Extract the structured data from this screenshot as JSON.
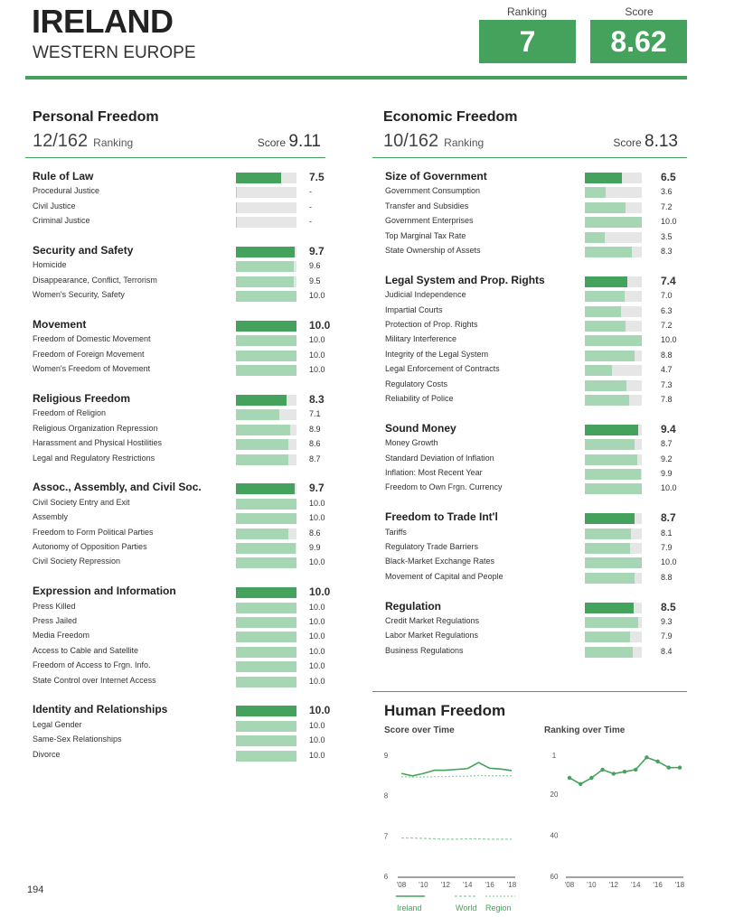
{
  "header": {
    "country": "IRELAND",
    "region": "WESTERN EUROPE",
    "ranking_label": "Ranking",
    "ranking_value": "7",
    "score_label": "Score",
    "score_value": "8.62"
  },
  "personal": {
    "title": "Personal Freedom",
    "rank": "12/162",
    "rank_label": "Ranking",
    "score_label": "Score",
    "score_value": "9.11",
    "categories": [
      {
        "name": "Rule of Law",
        "value": "7.5",
        "indicators": [
          {
            "name": "Procedural Justice",
            "value": "-"
          },
          {
            "name": "Civil Justice",
            "value": "-"
          },
          {
            "name": "Criminal Justice",
            "value": "-"
          }
        ]
      },
      {
        "name": "Security and Safety",
        "value": "9.7",
        "indicators": [
          {
            "name": "Homicide",
            "value": "9.6"
          },
          {
            "name": "Disappearance, Conflict, Terrorism",
            "value": "9.5"
          },
          {
            "name": "Women's Security, Safety",
            "value": "10.0"
          }
        ]
      },
      {
        "name": "Movement",
        "value": "10.0",
        "indicators": [
          {
            "name": "Freedom of Domestic Movement",
            "value": "10.0"
          },
          {
            "name": "Freedom of Foreign Movement",
            "value": "10.0"
          },
          {
            "name": "Women's Freedom of Movement",
            "value": "10.0"
          }
        ]
      },
      {
        "name": "Religious Freedom",
        "value": "8.3",
        "indicators": [
          {
            "name": "Freedom of Religion",
            "value": "7.1"
          },
          {
            "name": "Religious Organization Repression",
            "value": "8.9"
          },
          {
            "name": "Harassment and Physical Hostilities",
            "value": "8.6"
          },
          {
            "name": "Legal and Regulatory Restrictions",
            "value": "8.7"
          }
        ]
      },
      {
        "name": "Assoc., Assembly, and Civil Soc.",
        "value": "9.7",
        "indicators": [
          {
            "name": "Civil Society Entry and Exit",
            "value": "10.0"
          },
          {
            "name": "Assembly",
            "value": "10.0"
          },
          {
            "name": "Freedom to Form Political Parties",
            "value": "8.6"
          },
          {
            "name": "Autonomy of Opposition Parties",
            "value": "9.9"
          },
          {
            "name": "Civil Society Repression",
            "value": "10.0"
          }
        ]
      },
      {
        "name": "Expression and Information",
        "value": "10.0",
        "indicators": [
          {
            "name": "Press Killed",
            "value": "10.0"
          },
          {
            "name": "Press Jailed",
            "value": "10.0"
          },
          {
            "name": "Media Freedom",
            "value": "10.0"
          },
          {
            "name": "Access to Cable and Satellite",
            "value": "10.0"
          },
          {
            "name": "Freedom of Access to Frgn. Info.",
            "value": "10.0"
          },
          {
            "name": "State Control over Internet Access",
            "value": "10.0"
          }
        ]
      },
      {
        "name": "Identity and Relationships",
        "value": "10.0",
        "indicators": [
          {
            "name": "Legal Gender",
            "value": "10.0"
          },
          {
            "name": "Same-Sex Relationships",
            "value": "10.0"
          },
          {
            "name": "Divorce",
            "value": "10.0"
          }
        ]
      }
    ]
  },
  "economic": {
    "title": "Economic Freedom",
    "rank": "10/162",
    "rank_label": "Ranking",
    "score_label": "Score",
    "score_value": "8.13",
    "categories": [
      {
        "name": "Size of Government",
        "value": "6.5",
        "indicators": [
          {
            "name": "Government Consumption",
            "value": "3.6"
          },
          {
            "name": "Transfer and Subsidies",
            "value": "7.2"
          },
          {
            "name": "Government Enterprises",
            "value": "10.0"
          },
          {
            "name": "Top Marginal Tax Rate",
            "value": "3.5"
          },
          {
            "name": "State Ownership of Assets",
            "value": "8.3"
          }
        ]
      },
      {
        "name": "Legal System and Prop. Rights",
        "value": "7.4",
        "indicators": [
          {
            "name": "Judicial Independence",
            "value": "7.0"
          },
          {
            "name": "Impartial Courts",
            "value": "6.3"
          },
          {
            "name": "Protection of Prop. Rights",
            "value": "7.2"
          },
          {
            "name": "Military Interference",
            "value": "10.0"
          },
          {
            "name": "Integrity of the Legal System",
            "value": "8.8"
          },
          {
            "name": "Legal Enforcement of Contracts",
            "value": "4.7"
          },
          {
            "name": "Regulatory Costs",
            "value": "7.3"
          },
          {
            "name": "Reliability of Police",
            "value": "7.8"
          }
        ]
      },
      {
        "name": "Sound Money",
        "value": "9.4",
        "indicators": [
          {
            "name": "Money Growth",
            "value": "8.7"
          },
          {
            "name": "Standard Deviation of Inflation",
            "value": "9.2"
          },
          {
            "name": "Inflation: Most Recent Year",
            "value": "9.9"
          },
          {
            "name": "Freedom to Own Frgn. Currency",
            "value": "10.0"
          }
        ]
      },
      {
        "name": "Freedom to Trade Int'l",
        "value": "8.7",
        "indicators": [
          {
            "name": "Tariffs",
            "value": "8.1"
          },
          {
            "name": "Regulatory Trade Barriers",
            "value": "7.9"
          },
          {
            "name": "Black-Market Exchange Rates",
            "value": "10.0"
          },
          {
            "name": "Movement of Capital and People",
            "value": "8.8"
          }
        ]
      },
      {
        "name": "Regulation",
        "value": "8.5",
        "indicators": [
          {
            "name": "Credit Market Regulations",
            "value": "9.3"
          },
          {
            "name": "Labor Market Regulations",
            "value": "7.9"
          },
          {
            "name": "Business Regulations",
            "value": "8.4"
          }
        ]
      }
    ]
  },
  "human_freedom": {
    "title": "Human Freedom",
    "score_chart_title": "Score over Time",
    "ranking_chart_title": "Ranking over Time",
    "legend": {
      "ireland": "Ireland",
      "world": "World",
      "region": "Region"
    }
  },
  "page_number": "194",
  "colors": {
    "accent": "#45a25c",
    "light": "#a6d6b3",
    "track": "#e6e6e6"
  },
  "chart_data": [
    {
      "type": "line",
      "title": "Score over Time",
      "x": [
        "2008",
        "2009",
        "2010",
        "2011",
        "2012",
        "2013",
        "2014",
        "2015",
        "2016",
        "2017",
        "2018"
      ],
      "x_tick_labels": [
        "'08",
        "'10",
        "'12",
        "'14",
        "'16",
        "'18"
      ],
      "y_ticks": [
        "9",
        "8",
        "7",
        "6"
      ],
      "ylim": [
        6,
        9
      ],
      "series": [
        {
          "name": "Ireland",
          "values": [
            8.55,
            8.49,
            8.55,
            8.63,
            8.63,
            8.65,
            8.67,
            8.82,
            8.68,
            8.66,
            8.62
          ]
        },
        {
          "name": "World",
          "values": [
            6.95,
            6.95,
            6.94,
            6.93,
            6.92,
            6.92,
            6.93,
            6.93,
            6.92,
            6.92,
            6.92
          ]
        },
        {
          "name": "Region",
          "values": [
            8.47,
            8.46,
            8.46,
            8.47,
            8.47,
            8.48,
            8.48,
            8.5,
            8.49,
            8.49,
            8.49
          ]
        }
      ]
    },
    {
      "type": "line",
      "title": "Ranking over Time",
      "x": [
        "2008",
        "2009",
        "2010",
        "2011",
        "2012",
        "2013",
        "2014",
        "2015",
        "2016",
        "2017",
        "2018"
      ],
      "x_tick_labels": [
        "'08",
        "'10",
        "'12",
        "'14",
        "'16",
        "'18"
      ],
      "y_ticks": [
        "1",
        "20",
        "40",
        "60"
      ],
      "ylim": [
        60,
        1
      ],
      "series": [
        {
          "name": "Ireland",
          "values": [
            12,
            15,
            12,
            8,
            10,
            9,
            8,
            2,
            4,
            7,
            7
          ]
        }
      ]
    }
  ]
}
